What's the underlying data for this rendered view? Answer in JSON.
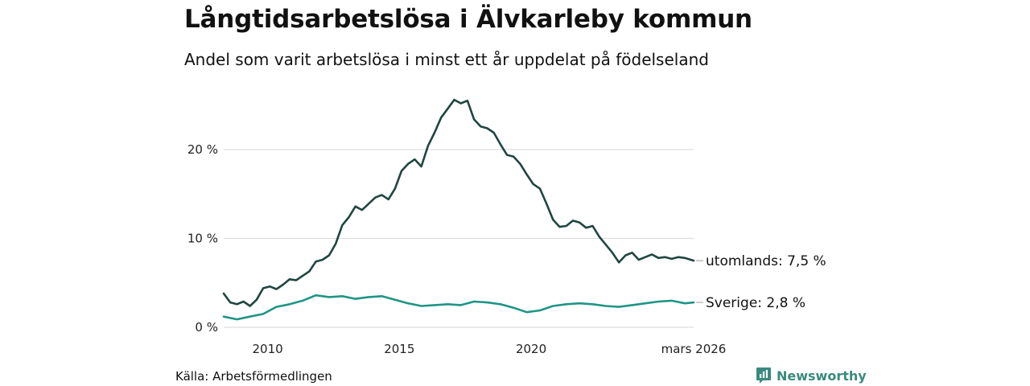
{
  "title": "Långtidsarbetslösa i Älvkarleby kommun",
  "subtitle": "Andel som varit arbetslösa i minst ett år uppdelat på födelseland",
  "source": "Källa: Arbetsförmedlingen",
  "brand": "Newsworthy",
  "colors": {
    "utomlands": "#1f4640",
    "sverige": "#1f9585",
    "grid": "#dddddd",
    "brand": "#3a8a7e"
  },
  "chart_data": {
    "type": "line",
    "x_start": "2008-05",
    "x_end": "2026-03",
    "x_ticks": [
      "2010",
      "2015",
      "2020",
      "mars 2026"
    ],
    "y_ticks": [
      "0 %",
      "10 %",
      "20 %"
    ],
    "ylim": [
      0,
      27
    ],
    "series": [
      {
        "name": "utomlands",
        "end_label": "utomlands: 7,5 %",
        "points": [
          [
            "2008-05",
            3.8
          ],
          [
            "2008-08",
            2.8
          ],
          [
            "2008-11",
            2.6
          ],
          [
            "2009-02",
            2.9
          ],
          [
            "2009-05",
            2.4
          ],
          [
            "2009-08",
            3.1
          ],
          [
            "2009-11",
            4.4
          ],
          [
            "2010-02",
            4.6
          ],
          [
            "2010-05",
            4.3
          ],
          [
            "2010-08",
            4.8
          ],
          [
            "2010-11",
            5.4
          ],
          [
            "2011-02",
            5.3
          ],
          [
            "2011-05",
            5.8
          ],
          [
            "2011-08",
            6.3
          ],
          [
            "2011-11",
            7.4
          ],
          [
            "2012-02",
            7.6
          ],
          [
            "2012-05",
            8.1
          ],
          [
            "2012-08",
            9.4
          ],
          [
            "2012-11",
            11.5
          ],
          [
            "2013-02",
            12.4
          ],
          [
            "2013-05",
            13.6
          ],
          [
            "2013-08",
            13.2
          ],
          [
            "2013-11",
            13.9
          ],
          [
            "2014-02",
            14.6
          ],
          [
            "2014-05",
            14.9
          ],
          [
            "2014-08",
            14.4
          ],
          [
            "2014-11",
            15.6
          ],
          [
            "2015-02",
            17.6
          ],
          [
            "2015-05",
            18.4
          ],
          [
            "2015-08",
            18.9
          ],
          [
            "2015-11",
            18.1
          ],
          [
            "2016-02",
            20.4
          ],
          [
            "2016-05",
            21.9
          ],
          [
            "2016-08",
            23.6
          ],
          [
            "2016-11",
            24.6
          ],
          [
            "2017-02",
            25.6
          ],
          [
            "2017-05",
            25.2
          ],
          [
            "2017-08",
            25.5
          ],
          [
            "2017-11",
            23.4
          ],
          [
            "2018-02",
            22.6
          ],
          [
            "2018-05",
            22.4
          ],
          [
            "2018-08",
            21.9
          ],
          [
            "2018-11",
            20.6
          ],
          [
            "2019-02",
            19.4
          ],
          [
            "2019-05",
            19.2
          ],
          [
            "2019-08",
            18.4
          ],
          [
            "2019-11",
            17.2
          ],
          [
            "2020-02",
            16.1
          ],
          [
            "2020-05",
            15.6
          ],
          [
            "2020-08",
            13.9
          ],
          [
            "2020-11",
            12.1
          ],
          [
            "2021-02",
            11.3
          ],
          [
            "2021-05",
            11.4
          ],
          [
            "2021-08",
            12.0
          ],
          [
            "2021-11",
            11.8
          ],
          [
            "2022-02",
            11.2
          ],
          [
            "2022-05",
            11.4
          ],
          [
            "2022-08",
            10.2
          ],
          [
            "2022-11",
            9.3
          ],
          [
            "2023-02",
            8.4
          ],
          [
            "2023-05",
            7.3
          ],
          [
            "2023-08",
            8.1
          ],
          [
            "2023-11",
            8.4
          ],
          [
            "2024-02",
            7.6
          ],
          [
            "2024-05",
            7.9
          ],
          [
            "2024-08",
            8.2
          ],
          [
            "2024-11",
            7.8
          ],
          [
            "2025-02",
            7.9
          ],
          [
            "2025-05",
            7.7
          ],
          [
            "2025-08",
            7.9
          ],
          [
            "2025-11",
            7.8
          ],
          [
            "2026-03",
            7.5
          ]
        ]
      },
      {
        "name": "Sverige",
        "end_label": "Sverige: 2,8 %",
        "points": [
          [
            "2008-05",
            1.2
          ],
          [
            "2008-11",
            0.9
          ],
          [
            "2009-05",
            1.2
          ],
          [
            "2009-11",
            1.5
          ],
          [
            "2010-05",
            2.3
          ],
          [
            "2010-11",
            2.6
          ],
          [
            "2011-05",
            3.0
          ],
          [
            "2011-11",
            3.6
          ],
          [
            "2012-05",
            3.4
          ],
          [
            "2012-11",
            3.5
          ],
          [
            "2013-05",
            3.2
          ],
          [
            "2013-11",
            3.4
          ],
          [
            "2014-05",
            3.5
          ],
          [
            "2014-11",
            3.1
          ],
          [
            "2015-05",
            2.7
          ],
          [
            "2015-11",
            2.4
          ],
          [
            "2016-05",
            2.5
          ],
          [
            "2016-11",
            2.6
          ],
          [
            "2017-05",
            2.5
          ],
          [
            "2017-11",
            2.9
          ],
          [
            "2018-05",
            2.8
          ],
          [
            "2018-11",
            2.6
          ],
          [
            "2019-05",
            2.2
          ],
          [
            "2019-11",
            1.7
          ],
          [
            "2020-05",
            1.9
          ],
          [
            "2020-11",
            2.4
          ],
          [
            "2021-05",
            2.6
          ],
          [
            "2021-11",
            2.7
          ],
          [
            "2022-05",
            2.6
          ],
          [
            "2022-11",
            2.4
          ],
          [
            "2023-05",
            2.3
          ],
          [
            "2023-11",
            2.5
          ],
          [
            "2024-05",
            2.7
          ],
          [
            "2024-11",
            2.9
          ],
          [
            "2025-05",
            3.0
          ],
          [
            "2025-11",
            2.7
          ],
          [
            "2026-03",
            2.8
          ]
        ]
      }
    ]
  }
}
